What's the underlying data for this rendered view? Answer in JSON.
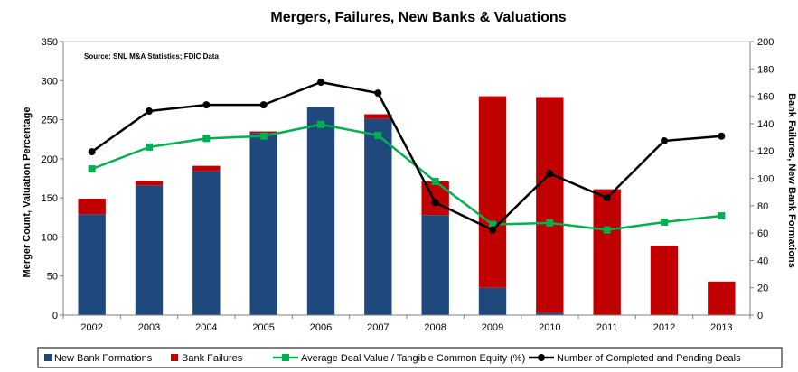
{
  "chart_data": {
    "type": "bar",
    "title": "Mergers, Failures, New Banks & Valuations",
    "source_note": "Source:  SNL M&A Statistics;  FDIC Data",
    "ylabel": "Merger Count, Valuation Percentage",
    "y2label": "Bank Failures, New Bank Formations",
    "ylim": [
      0,
      350
    ],
    "y2lim": [
      0,
      200
    ],
    "yticks": [
      "0",
      "50",
      "100",
      "150",
      "200",
      "250",
      "300",
      "350"
    ],
    "y2ticks": [
      "0",
      "20",
      "40",
      "60",
      "80",
      "100",
      "120",
      "140",
      "160",
      "180",
      "200"
    ],
    "categories": [
      "2002",
      "2003",
      "2004",
      "2005",
      "2006",
      "2007",
      "2008",
      "2009",
      "2010",
      "2011",
      "2012",
      "2013"
    ],
    "stacked_series": [
      {
        "name": "New Bank Formations",
        "color": "#1f497d",
        "values": [
          129,
          166,
          184,
          233,
          266,
          251,
          128,
          35,
          3,
          0,
          0,
          0
        ]
      },
      {
        "name": "Bank Failures",
        "color": "#c00000",
        "values": [
          20,
          6,
          7,
          2,
          0,
          6,
          43,
          245,
          276,
          161,
          89,
          43
        ]
      }
    ],
    "line_series": [
      {
        "name": "Average Deal Value / Tangible Common Equity (%)",
        "color": "#00b050",
        "marker": "square",
        "axis": "left",
        "values": [
          187,
          215,
          226,
          229,
          244,
          230,
          171,
          116,
          118,
          109,
          119,
          127
        ]
      },
      {
        "name": "Number of Completed and Pending Deals",
        "color": "#000000",
        "marker": "circle",
        "axis": "left",
        "values": [
          209,
          261,
          269,
          269,
          298,
          284,
          144,
          109,
          181,
          150,
          223,
          229
        ]
      }
    ],
    "legend_position": "bottom",
    "grid": false
  }
}
